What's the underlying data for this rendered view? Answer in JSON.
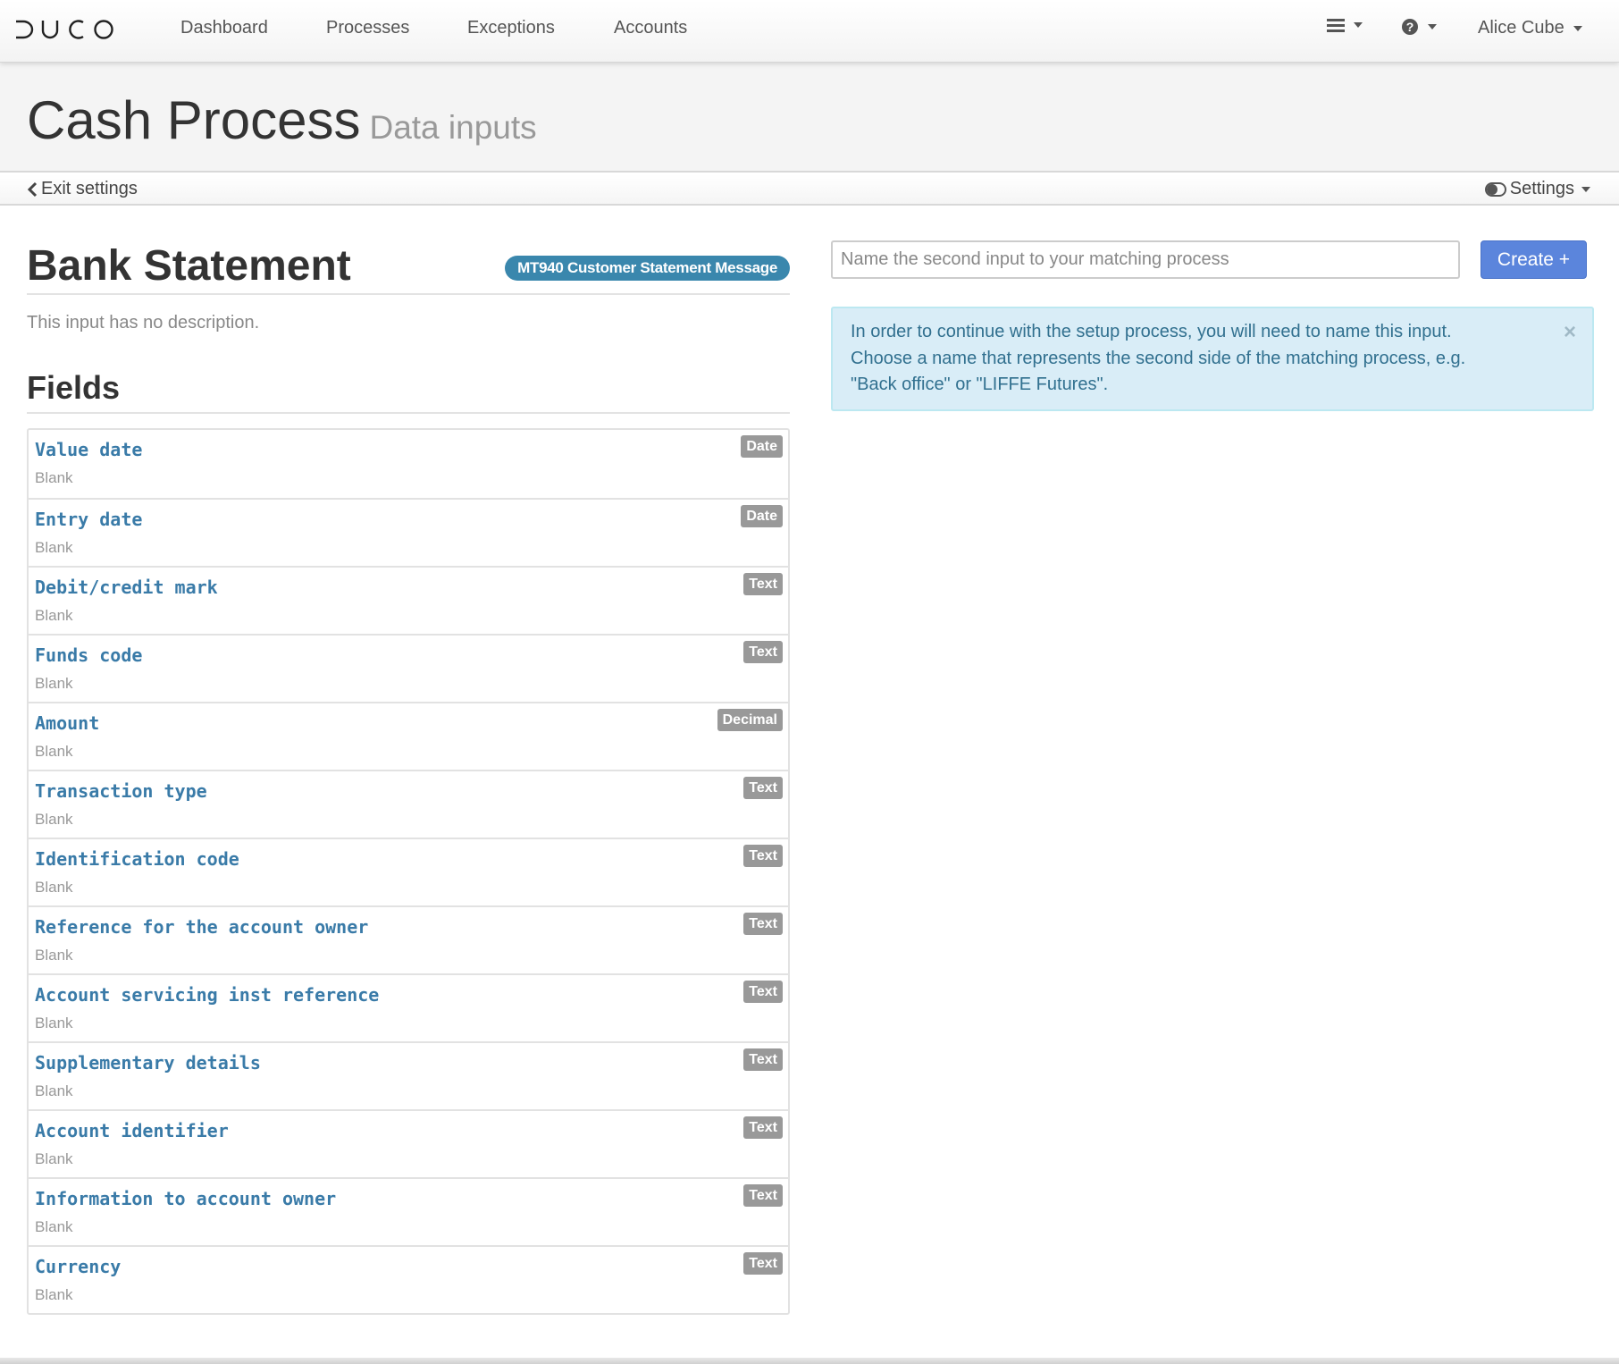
{
  "nav": {
    "logo": "DUCO",
    "items": [
      "Dashboard",
      "Processes",
      "Exceptions",
      "Accounts"
    ],
    "menu_icon": "hamburger-menu-icon",
    "help_icon": "question-circle-icon",
    "user": "Alice Cube"
  },
  "header": {
    "title": "Cash Process",
    "subtitle": "Data inputs"
  },
  "subbar": {
    "exit_label": "Exit settings",
    "settings_label": "Settings"
  },
  "input": {
    "title": "Bank Statement",
    "format": "MT940 Customer Statement Message",
    "description": "This input has no description.",
    "fields_heading": "Fields",
    "fields": [
      {
        "name": "Value date",
        "type": "Date",
        "value": "Blank"
      },
      {
        "name": "Entry date",
        "type": "Date",
        "value": "Blank"
      },
      {
        "name": "Debit/credit mark",
        "type": "Text",
        "value": "Blank"
      },
      {
        "name": "Funds code",
        "type": "Text",
        "value": "Blank"
      },
      {
        "name": "Amount",
        "type": "Decimal",
        "value": "Blank"
      },
      {
        "name": "Transaction type",
        "type": "Text",
        "value": "Blank"
      },
      {
        "name": "Identification code",
        "type": "Text",
        "value": "Blank"
      },
      {
        "name": "Reference for the account owner",
        "type": "Text",
        "value": "Blank"
      },
      {
        "name": "Account servicing inst reference",
        "type": "Text",
        "value": "Blank"
      },
      {
        "name": "Supplementary details",
        "type": "Text",
        "value": "Blank"
      },
      {
        "name": "Account identifier",
        "type": "Text",
        "value": "Blank"
      },
      {
        "name": "Information to account owner",
        "type": "Text",
        "value": "Blank"
      },
      {
        "name": "Currency",
        "type": "Text",
        "value": "Blank"
      }
    ]
  },
  "second_input": {
    "placeholder": "Name the second input to your matching process",
    "value": "",
    "create_label": "Create +",
    "alert_lines": [
      "In order to continue with the setup process, you will need to name this input.",
      "Choose a name that represents the second side of the matching process, e.g.",
      "\"Back office\" or \"LIFFE Futures\"."
    ],
    "alert_close": "×"
  },
  "colors": {
    "accent": "#5b85dc",
    "field_name": "#3a7ba8",
    "format_badge": "#3a87ad",
    "type_badge": "#999999",
    "alert_bg": "#d9edf7",
    "alert_text": "#31708f"
  }
}
